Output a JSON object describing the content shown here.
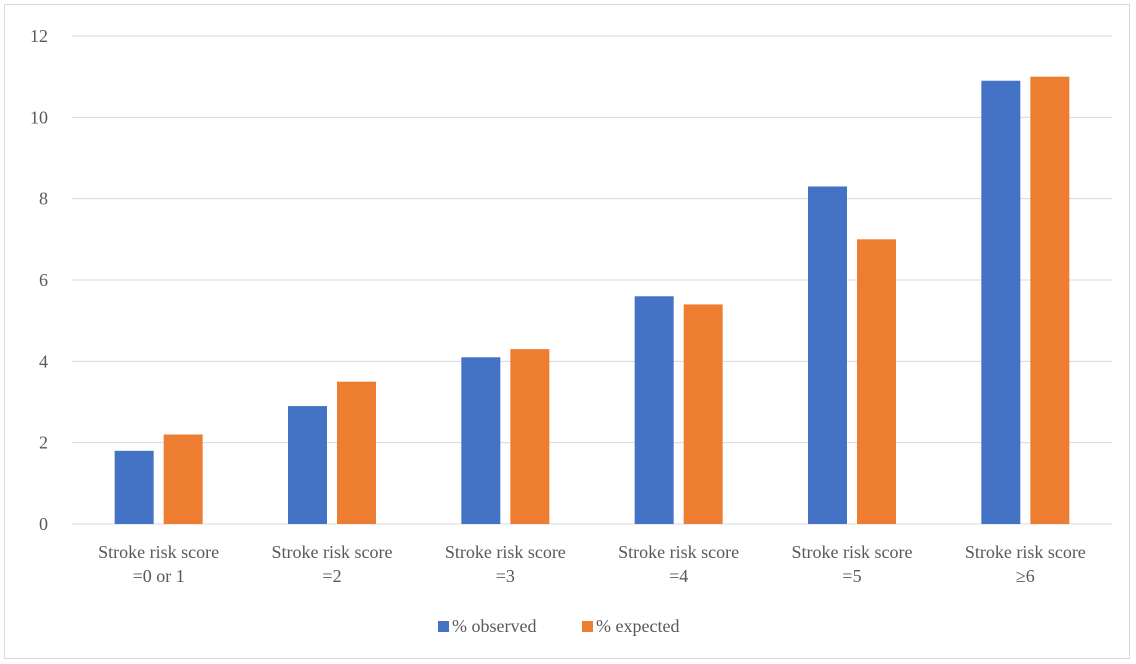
{
  "chart_data": {
    "type": "bar",
    "categories": [
      [
        "Stroke risk score",
        "=0 or 1"
      ],
      [
        "Stroke risk score",
        "=2"
      ],
      [
        "Stroke risk score",
        "=3"
      ],
      [
        "Stroke risk score",
        "=4"
      ],
      [
        "Stroke risk score",
        "=5"
      ],
      [
        "Stroke risk score",
        "≥6"
      ]
    ],
    "series": [
      {
        "name": "% observed",
        "color": "#4472c4",
        "values": [
          1.8,
          2.9,
          4.1,
          5.6,
          8.3,
          10.9
        ]
      },
      {
        "name": "% expected",
        "color": "#ed7d31",
        "values": [
          2.2,
          3.5,
          4.3,
          5.4,
          7.0,
          11.0
        ]
      }
    ],
    "yticks": [
      "0",
      "2",
      "4",
      "6",
      "8",
      "10",
      "12"
    ],
    "ylim": [
      0,
      12
    ],
    "grid": true,
    "legend_position": "bottom",
    "title": "",
    "xlabel": "",
    "ylabel": ""
  }
}
